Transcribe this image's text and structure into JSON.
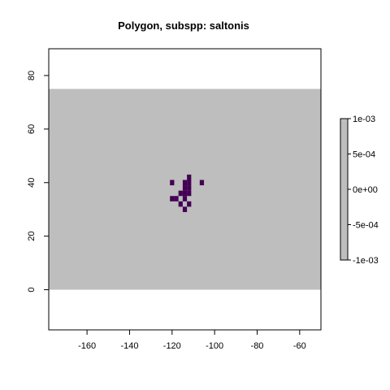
{
  "title": "Polygon, subspp: saltonis",
  "colors": {
    "raster_fill": "#bebebe",
    "presence_cell": "#440154",
    "background": "#ffffff",
    "axis": "#000000"
  },
  "chart_data": {
    "type": "heatmap",
    "title": "Polygon, subspp: saltonis",
    "xlabel": "",
    "ylabel": "",
    "xlim": [
      -178,
      -50
    ],
    "ylim": [
      -15,
      90
    ],
    "x_ticks": [
      -160,
      -140,
      -120,
      -100,
      -80,
      -60
    ],
    "y_ticks": [
      0,
      20,
      40,
      60,
      80
    ],
    "raster_extent": {
      "xmin": -178,
      "xmax": -50,
      "ymin": 0,
      "ymax": 75
    },
    "cell_size_degrees": 2,
    "presence_cells": [
      {
        "x": -120,
        "y": 40
      },
      {
        "x": -114,
        "y": 40
      },
      {
        "x": -112,
        "y": 42
      },
      {
        "x": -112,
        "y": 40
      },
      {
        "x": -106,
        "y": 40
      },
      {
        "x": -114,
        "y": 38
      },
      {
        "x": -112,
        "y": 38
      },
      {
        "x": -116,
        "y": 36
      },
      {
        "x": -114,
        "y": 36
      },
      {
        "x": -112,
        "y": 36
      },
      {
        "x": -120,
        "y": 34
      },
      {
        "x": -118,
        "y": 34
      },
      {
        "x": -114,
        "y": 34
      },
      {
        "x": -116,
        "y": 32
      },
      {
        "x": -112,
        "y": 32
      },
      {
        "x": -114,
        "y": 30
      }
    ],
    "legend": {
      "position": "right",
      "ticks": [
        "1e-03",
        "5e-04",
        "0e+00",
        "-5e-04",
        "-1e-03"
      ],
      "fill": "#bebebe"
    },
    "grid": false
  }
}
